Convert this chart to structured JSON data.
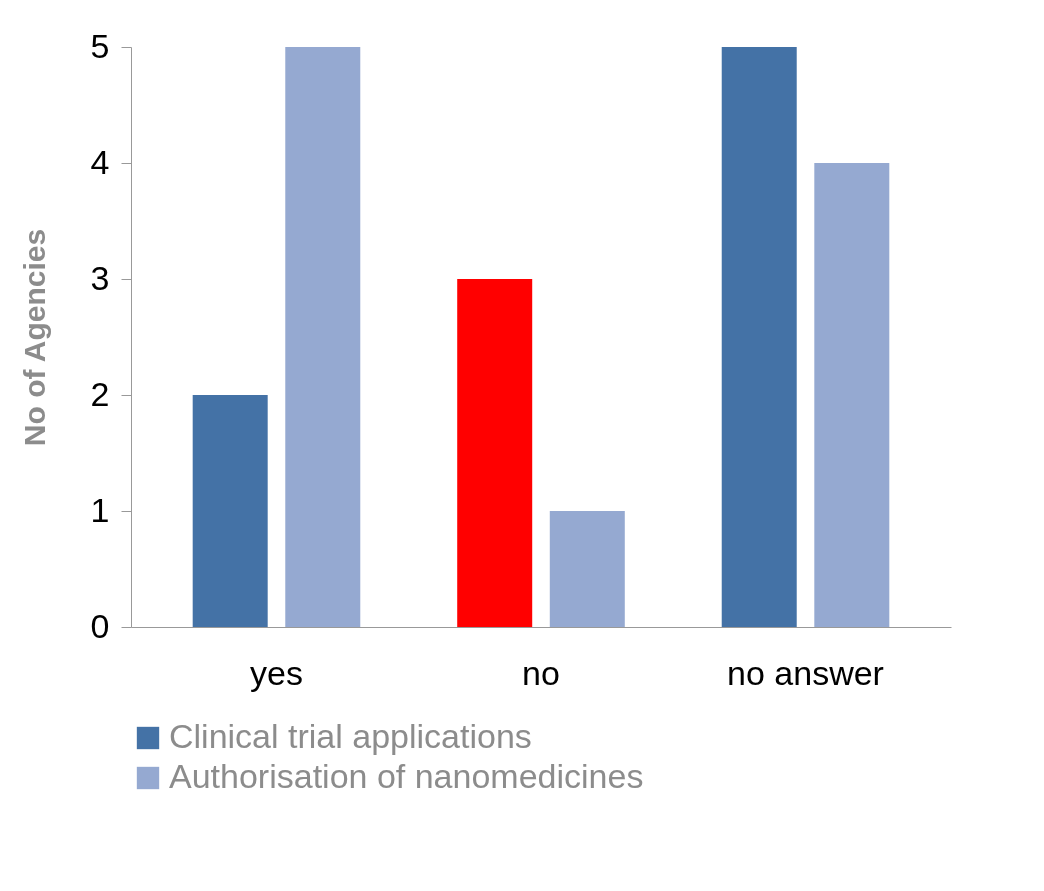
{
  "chart_data": {
    "type": "bar",
    "ylabel": "No of Agencies",
    "categories": [
      "yes",
      "no",
      "no answer"
    ],
    "series": [
      {
        "name": "Clinical trial applications",
        "color": "#4472a6",
        "colors": [
          "#4472a6",
          "#ff0000",
          "#4472a6"
        ],
        "values": [
          2,
          3,
          5
        ]
      },
      {
        "name": "Authorisation of nanomedicines",
        "color": "#95a9d1",
        "values": [
          5,
          1,
          4
        ]
      }
    ],
    "ylim": [
      0,
      5
    ],
    "yticks": [
      0,
      1,
      2,
      3,
      4,
      5
    ],
    "grid": false,
    "legend": "bottom"
  }
}
